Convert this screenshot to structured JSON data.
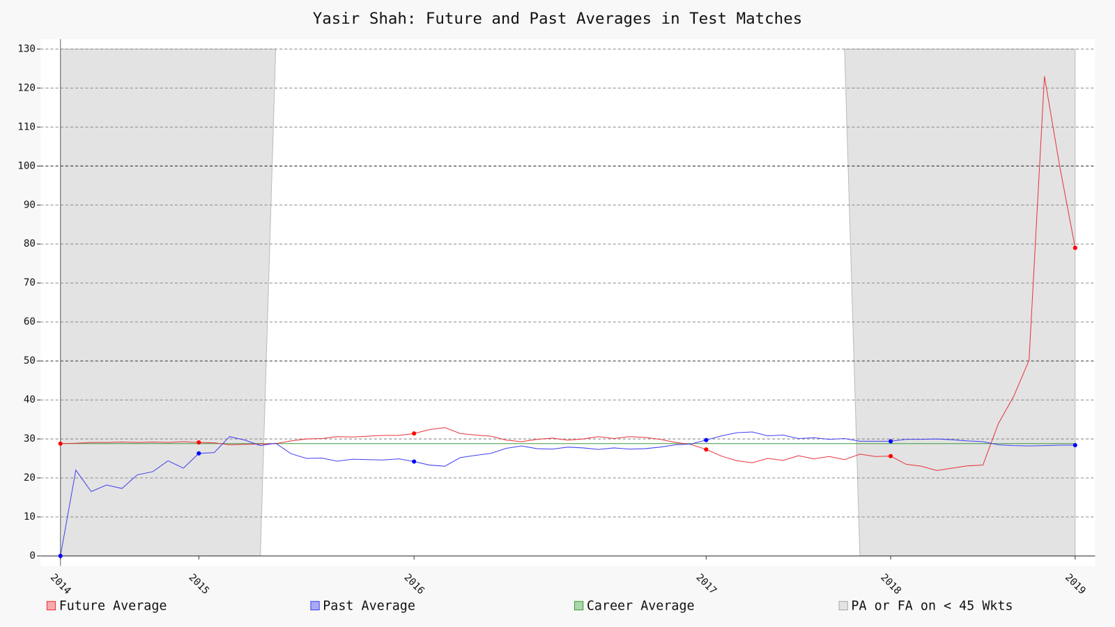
{
  "chart_data": {
    "type": "line",
    "title": "Yasir Shah: Future and Past Averages in Test Matches",
    "x": [
      0,
      1,
      2,
      3,
      4,
      5,
      6,
      7,
      8,
      9,
      10,
      11,
      12,
      13,
      14,
      15,
      16,
      17,
      18,
      19,
      20,
      21,
      22,
      23,
      24,
      25,
      26,
      27,
      28,
      29,
      30,
      31,
      32,
      33,
      34,
      35,
      36,
      37,
      38,
      39,
      40,
      41,
      42,
      43,
      44,
      45,
      46,
      47,
      48,
      49,
      50,
      51,
      52,
      53,
      54,
      55,
      56,
      57,
      58,
      59,
      60,
      61,
      62,
      63,
      64,
      65,
      66
    ],
    "series": [
      {
        "name": "Future Average",
        "color": "#e8323c",
        "marker_color": "#ff0000",
        "values": [
          28.8,
          28.9,
          29.1,
          29.1,
          29.2,
          29.1,
          29.2,
          29.1,
          29.3,
          29.1,
          29.0,
          28.5,
          28.6,
          28.7,
          28.8,
          29.5,
          30.0,
          30.1,
          30.6,
          30.5,
          30.7,
          30.9,
          30.9,
          31.4,
          32.4,
          32.9,
          31.4,
          31.0,
          30.7,
          29.7,
          29.3,
          29.9,
          30.2,
          29.7,
          30.0,
          30.6,
          30.1,
          30.6,
          30.4,
          29.9,
          29.1,
          28.6,
          27.3,
          25.6,
          24.4,
          23.9,
          25.0,
          24.5,
          25.7,
          24.9,
          25.5,
          24.7,
          26.1,
          25.5,
          25.6,
          23.5,
          23.0,
          21.9,
          22.5,
          23.1,
          23.3,
          33.9,
          40.9,
          50.2,
          123.0,
          99.8,
          79.0
        ]
      },
      {
        "name": "Past Average",
        "color": "#4040f0",
        "marker_color": "#0000ff",
        "values": [
          0,
          22.0,
          16.5,
          18.2,
          17.3,
          20.8,
          21.6,
          24.4,
          22.5,
          26.3,
          26.5,
          30.6,
          29.7,
          28.3,
          28.9,
          26.2,
          25.0,
          25.1,
          24.3,
          24.8,
          24.7,
          24.6,
          24.9,
          24.2,
          23.3,
          23.0,
          25.2,
          25.8,
          26.3,
          27.6,
          28.2,
          27.5,
          27.4,
          27.9,
          27.7,
          27.3,
          27.7,
          27.4,
          27.5,
          27.9,
          28.5,
          28.7,
          29.7,
          30.8,
          31.6,
          31.8,
          30.8,
          31.0,
          30.1,
          30.3,
          29.9,
          30.1,
          29.4,
          29.4,
          29.4,
          29.9,
          29.9,
          30.0,
          29.8,
          29.5,
          29.3,
          28.5,
          28.3,
          28.2,
          28.3,
          28.4,
          28.4
        ]
      }
    ],
    "career_average": {
      "name": "Career Average",
      "color": "#3c9a3c",
      "value": 28.8
    },
    "shade": {
      "name": "PA or FA on < 45 Wkts",
      "color": "#e3e3e3",
      "regions": [
        [
          0,
          13
        ],
        [
          52,
          66
        ]
      ]
    },
    "xlim": [
      0,
      66
    ],
    "xticks": [
      {
        "value": 0,
        "label": "2014"
      },
      {
        "value": 9,
        "label": "2015"
      },
      {
        "value": 23,
        "label": "2016"
      },
      {
        "value": 42,
        "label": "2017"
      },
      {
        "value": 54,
        "label": "2018"
      },
      {
        "value": 66,
        "label": "2019"
      }
    ],
    "ylim": [
      0,
      130
    ],
    "yticks": [
      0,
      10,
      20,
      30,
      40,
      50,
      60,
      70,
      80,
      90,
      100,
      110,
      120,
      130
    ],
    "grid": true
  }
}
